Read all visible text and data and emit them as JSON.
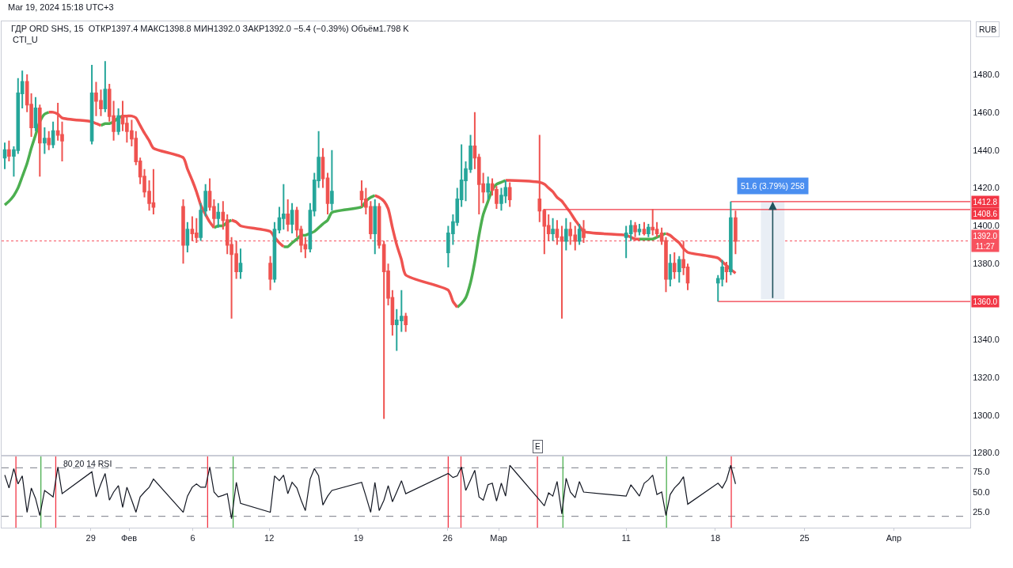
{
  "chart_data": [
    {
      "type": "candlestick",
      "title": "ГДР ORD SHS, 15  ОТКР1397.4 МАКС1398.8 МИН1392.0 ЗАКР1392.0 −5.4 (−0.39%) Объём1.798 K",
      "subtitle": "CTI_U",
      "ylabel": "RUB",
      "annotations": [
        "Mar 19, 2024 15:18 UTC+3"
      ],
      "x": [
        "2024-01-22T06:00",
        "2024-01-22T14:00",
        "2024-01-22T23:00",
        "2024-01-23T07:00",
        "2024-01-23T15:00",
        "2024-01-24T00:00",
        "2024-01-24T08:00",
        "2024-01-24T16:00",
        "2024-01-25T00:00",
        "2024-01-25T09:00",
        "2024-01-25T17:00",
        "2024-01-26T01:00",
        "2024-01-26T10:00",
        "2024-01-26T18:00",
        "2024-01-29T02:00",
        "2024-01-29T10:00",
        "2024-01-29T19:00",
        "2024-01-30T03:00",
        "2024-01-30T11:00",
        "2024-01-30T19:00",
        "2024-01-31T04:00",
        "2024-01-31T12:00",
        "2024-01-31T20:00",
        "2024-02-01T05:00",
        "2024-02-01T13:00",
        "2024-02-01T21:00",
        "2024-02-02T05:00",
        "2024-02-02T14:00",
        "2024-02-02T22:00",
        "2024-02-05T06:00",
        "2024-02-05T14:00",
        "2024-02-05T23:00",
        "2024-02-06T07:00",
        "2024-02-06T15:00",
        "2024-02-07T00:00",
        "2024-02-07T08:00",
        "2024-02-07T16:00",
        "2024-02-08T00:00",
        "2024-02-08T09:00",
        "2024-02-08T17:00",
        "2024-02-09T01:00",
        "2024-02-09T10:00",
        "2024-02-09T18:00",
        "2024-02-12T02:00",
        "2024-02-12T10:00",
        "2024-02-12T19:00",
        "2024-02-13T03:00",
        "2024-02-13T11:00",
        "2024-02-13T19:00",
        "2024-02-14T04:00",
        "2024-02-14T12:00",
        "2024-02-14T20:00",
        "2024-02-15T05:00",
        "2024-02-15T13:00",
        "2024-02-15T21:00",
        "2024-02-16T05:00",
        "2024-02-16T14:00",
        "2024-02-16T22:00",
        "2024-02-19T06:00",
        "2024-02-19T14:00",
        "2024-02-19T23:00",
        "2024-02-20T07:00",
        "2024-02-20T15:00",
        "2024-02-21T00:00",
        "2024-02-21T08:00",
        "2024-02-21T16:00",
        "2024-02-22T00:00",
        "2024-02-22T09:00",
        "2024-02-22T17:00",
        "2024-02-26T01:00",
        "2024-02-26T10:00",
        "2024-02-26T18:00",
        "2024-02-27T02:00",
        "2024-02-27T10:00",
        "2024-02-27T19:00",
        "2024-02-28T03:00",
        "2024-02-28T11:00",
        "2024-02-28T19:00",
        "2024-02-29T04:00",
        "2024-02-29T12:00",
        "2024-02-29T20:00",
        "2024-03-01T05:00",
        "2024-03-01T13:00",
        "2024-03-01T21:00",
        "2024-03-04T05:00",
        "2024-03-04T14:00",
        "2024-03-04T22:00",
        "2024-03-05T06:00",
        "2024-03-05T14:00",
        "2024-03-05T23:00",
        "2024-03-06T07:00",
        "2024-03-06T15:00",
        "2024-03-07T00:00",
        "2024-03-07T08:00",
        "2024-03-07T16:00",
        "2024-03-11T00:00",
        "2024-03-11T09:00",
        "2024-03-11T17:00",
        "2024-03-12T01:00",
        "2024-03-12T10:00",
        "2024-03-12T18:00",
        "2024-03-13T02:00",
        "2024-03-13T10:00",
        "2024-03-13T19:00",
        "2024-03-14T03:00",
        "2024-03-14T11:00",
        "2024-03-14T19:00",
        "2024-03-15T04:00",
        "2024-03-15T12:00",
        "2024-03-15T20:00",
        "2024-03-18T05:00",
        "2024-03-18T13:00",
        "2024-03-18T21:00",
        "2024-03-19T05:00",
        "2024-03-19T14:00"
      ],
      "ohlc": [
        [
          1436,
          1444,
          1430,
          1440
        ],
        [
          1440,
          1445,
          1434,
          1437
        ],
        [
          1437,
          1442,
          1426,
          1440
        ],
        [
          1440,
          1478,
          1438,
          1470
        ],
        [
          1470,
          1482,
          1462,
          1476
        ],
        [
          1476,
          1480,
          1460,
          1464
        ],
        [
          1464,
          1470,
          1447,
          1452
        ],
        [
          1452,
          1468,
          1450,
          1462
        ],
        [
          1462,
          1464,
          1426,
          1444
        ],
        [
          1444,
          1452,
          1438,
          1446
        ],
        [
          1446,
          1450,
          1440,
          1443
        ],
        [
          1443,
          1455,
          1441,
          1450
        ],
        [
          1450,
          1465,
          1445,
          1448
        ],
        [
          1448,
          1455,
          1434,
          1445
        ],
        [
          1445,
          1485,
          1443,
          1470
        ],
        [
          1470,
          1476,
          1458,
          1466
        ],
        [
          1466,
          1472,
          1458,
          1462
        ],
        [
          1462,
          1487,
          1460,
          1472
        ],
        [
          1472,
          1475,
          1455,
          1458
        ],
        [
          1458,
          1466,
          1445,
          1450
        ],
        [
          1450,
          1462,
          1448,
          1458
        ],
        [
          1458,
          1466,
          1450,
          1454
        ],
        [
          1454,
          1458,
          1444,
          1450
        ],
        [
          1450,
          1456,
          1442,
          1446
        ],
        [
          1446,
          1450,
          1432,
          1434
        ],
        [
          1434,
          1436,
          1422,
          1426
        ],
        [
          1426,
          1430,
          1415,
          1418
        ],
        [
          1418,
          1424,
          1408,
          1412
        ],
        [
          1412,
          1430,
          1406,
          1410
        ],
        [
          1410,
          1414,
          1380,
          1390
        ],
        [
          1390,
          1402,
          1386,
          1398
        ],
        [
          1398,
          1405,
          1392,
          1396
        ],
        [
          1396,
          1404,
          1391,
          1394
        ],
        [
          1394,
          1412,
          1392,
          1408
        ],
        [
          1408,
          1422,
          1405,
          1418
        ],
        [
          1418,
          1425,
          1408,
          1410
        ],
        [
          1410,
          1414,
          1400,
          1404
        ],
        [
          1404,
          1412,
          1399,
          1407
        ],
        [
          1407,
          1413,
          1398,
          1403
        ],
        [
          1403,
          1406,
          1385,
          1390
        ],
        [
          1390,
          1394,
          1351,
          1385
        ],
        [
          1385,
          1392,
          1372,
          1376
        ],
        [
          1376,
          1388,
          1372,
          1380
        ],
        [
          1380,
          1384,
          1366,
          1372
        ],
        [
          1372,
          1402,
          1370,
          1398
        ],
        [
          1398,
          1410,
          1396,
          1404
        ],
        [
          1404,
          1422,
          1398,
          1406
        ],
        [
          1406,
          1414,
          1397,
          1401
        ],
        [
          1401,
          1412,
          1396,
          1408
        ],
        [
          1408,
          1410,
          1394,
          1398
        ],
        [
          1398,
          1400,
          1386,
          1390
        ],
        [
          1390,
          1394,
          1383,
          1388
        ],
        [
          1388,
          1412,
          1386,
          1408
        ],
        [
          1408,
          1428,
          1405,
          1424
        ],
        [
          1424,
          1450,
          1420,
          1436
        ],
        [
          1436,
          1441,
          1420,
          1425
        ],
        [
          1425,
          1428,
          1406,
          1412
        ],
        [
          1412,
          1440,
          1408,
          1418
        ],
        [
          1418,
          1424,
          1410,
          1414
        ],
        [
          1414,
          1420,
          1406,
          1410
        ],
        [
          1410,
          1413,
          1393,
          1396
        ],
        [
          1396,
          1414,
          1385,
          1410
        ],
        [
          1410,
          1412,
          1388,
          1390
        ],
        [
          1390,
          1392,
          1298,
          1376
        ],
        [
          1376,
          1380,
          1358,
          1362
        ],
        [
          1362,
          1366,
          1342,
          1348
        ],
        [
          1348,
          1356,
          1334,
          1350
        ],
        [
          1350,
          1366,
          1344,
          1352
        ],
        [
          1352,
          1354,
          1344,
          1348
        ],
        [
          1386,
          1400,
          1378,
          1396
        ],
        [
          1396,
          1406,
          1390,
          1402
        ],
        [
          1402,
          1420,
          1400,
          1414
        ],
        [
          1414,
          1443,
          1410,
          1424
        ],
        [
          1424,
          1434,
          1413,
          1430
        ],
        [
          1430,
          1448,
          1428,
          1442
        ],
        [
          1442,
          1460,
          1430,
          1436
        ],
        [
          1436,
          1438,
          1406,
          1422
        ],
        [
          1422,
          1428,
          1412,
          1418
        ],
        [
          1418,
          1426,
          1414,
          1422
        ],
        [
          1422,
          1425,
          1416,
          1419
        ],
        [
          1419,
          1421,
          1409,
          1412
        ],
        [
          1412,
          1420,
          1408,
          1416
        ],
        [
          1416,
          1424,
          1412,
          1420
        ],
        [
          1420,
          1423,
          1410,
          1414
        ],
        [
          1414,
          1448,
          1402,
          1408
        ],
        [
          1408,
          1409,
          1385,
          1400
        ],
        [
          1400,
          1406,
          1392,
          1396
        ],
        [
          1396,
          1404,
          1392,
          1398
        ],
        [
          1398,
          1403,
          1390,
          1394
        ],
        [
          1394,
          1400,
          1351,
          1392
        ],
        [
          1392,
          1404,
          1387,
          1398
        ],
        [
          1398,
          1402,
          1390,
          1395
        ],
        [
          1395,
          1400,
          1387,
          1392
        ],
        [
          1392,
          1401,
          1390,
          1398
        ],
        [
          1398,
          1403,
          1391,
          1394
        ],
        [
          1394,
          1400,
          1383,
          1396
        ],
        [
          1396,
          1403,
          1392,
          1400
        ],
        [
          1400,
          1402,
          1394,
          1397
        ],
        [
          1397,
          1401,
          1395,
          1398
        ],
        [
          1398,
          1402,
          1395,
          1396
        ],
        [
          1396,
          1401,
          1394,
          1399
        ],
        [
          1399,
          1409,
          1395,
          1398
        ],
        [
          1398,
          1402,
          1394,
          1396
        ],
        [
          1396,
          1399,
          1390,
          1392
        ],
        [
          1392,
          1394,
          1365,
          1372
        ],
        [
          1372,
          1385,
          1368,
          1380
        ],
        [
          1380,
          1386,
          1372,
          1376
        ],
        [
          1376,
          1384,
          1370,
          1382
        ],
        [
          1382,
          1392,
          1374,
          1378
        ],
        [
          1378,
          1380,
          1366,
          1370
        ],
        [
          1370,
          1374,
          1360,
          1372
        ],
        [
          1372,
          1382,
          1368,
          1378
        ],
        [
          1378,
          1381,
          1370,
          1376
        ],
        [
          1376,
          1412.8,
          1374,
          1404
        ],
        [
          1404,
          1408,
          1385,
          1392
        ]
      ],
      "series": [
        {
          "type": "bar",
          "x": [
            "2024-03-22T12:00"
          ],
          "base": [
            1361.2
          ],
          "values": [
            51.6
          ],
          "color": "#e9eef5",
          "value_labels": [
            "51.6 (3.79%) 258"
          ]
        },
        {
          "type": "line",
          "color": "#4caf50",
          "values": [
            1411,
            1413,
            1416,
            1420,
            1426,
            1433,
            1441,
            1448,
            1455,
            1459,
            1460,
            null,
            null,
            null,
            null,
            null,
            1453,
            1454,
            1454,
            1455,
            1457,
            1458,
            null,
            null,
            null,
            null,
            null,
            null,
            null,
            null,
            null,
            null,
            null,
            null,
            null,
            null,
            1399,
            1400,
            1400,
            1402,
            1403,
            null,
            null,
            null,
            null,
            null,
            1389,
            1389,
            1391,
            1393,
            1395,
            1395,
            1396,
            1397,
            1399,
            1401,
            1403,
            1407,
            1410,
            1413,
            1415,
            1416,
            null,
            null,
            null,
            null,
            null,
            null,
            null,
            null,
            null,
            1357,
            1359,
            1362,
            1370,
            1381,
            1395,
            1406,
            1413,
            1419,
            1422,
            1423,
            1424,
            null,
            null,
            null,
            null,
            null,
            null,
            null,
            null,
            null,
            null,
            null,
            null,
            null,
            null,
            null,
            1393,
            1393,
            1393,
            1393,
            1394,
            1395,
            1396,
            null,
            null,
            null,
            null,
            null,
            null,
            null,
            null,
            null,
            null
          ]
        },
        {
          "type": "line",
          "color": "#ef5350",
          "values": [
            null,
            null,
            null,
            null,
            null,
            null,
            null,
            null,
            null,
            null,
            1460,
            1460,
            1459,
            1457,
            1455,
            1454,
            1453,
            null,
            null,
            null,
            null,
            1458,
            1458,
            1458,
            1457,
            1453,
            1449,
            1445,
            1441,
            1436,
            1430,
            1424,
            1418,
            1411,
            1406,
            1402,
            1399,
            null,
            null,
            null,
            1403,
            1402,
            1400,
            1397,
            1394,
            1391,
            1389,
            null,
            null,
            null,
            null,
            null,
            null,
            null,
            null,
            null,
            null,
            null,
            null,
            null,
            null,
            1416,
            1415,
            1413,
            1409,
            1399,
            1390,
            1382,
            1374,
            1366,
            1360,
            1357,
            null,
            null,
            null,
            null,
            null,
            null,
            null,
            null,
            null,
            null,
            1424,
            1424,
            1423,
            1422,
            1420,
            1418,
            1415,
            1413,
            1410,
            1407,
            1403,
            1400,
            1397,
            1395,
            1394,
            1393,
            1393,
            null,
            null,
            null,
            null,
            null,
            1396,
            1395,
            1393,
            1391,
            1388,
            1386,
            1383,
            1381,
            1379,
            1377,
            1375
          ]
        },
        {
          "type": "line",
          "color": "#f23645",
          "x": [
            "2024-03-04T12:00",
            "2024-04-07T00:00"
          ],
          "values": [
            1408.6,
            1408.6
          ],
          "value_labels": [
            null,
            "1408.6"
          ]
        },
        {
          "type": "line",
          "color": "#f23645",
          "x": [
            "2024-03-19T05:00",
            "2024-04-07T00:00"
          ],
          "values": [
            1412.8,
            1412.8
          ],
          "value_labels": [
            null,
            "1412.8"
          ]
        },
        {
          "type": "line",
          "color": "#f23645",
          "x": [
            "2024-03-18T05:00",
            "2024-04-07T00:00"
          ],
          "values": [
            1360.0,
            1360.0
          ],
          "value_labels": [
            null,
            "1360.0"
          ]
        }
      ],
      "ref_lines": [
        {
          "axis": "y",
          "value": 1392.0,
          "label": "1392.0\n11:27",
          "color": "#f7525f",
          "line_style": "dotted"
        }
      ],
      "xlim": [
        "2024-01-22T00:00",
        "2024-04-07T00:00"
      ],
      "ylim": [
        1279,
        1508
      ],
      "yticks": [
        {
          "value": 1280,
          "label": "1280.0"
        },
        {
          "value": 1300,
          "label": "1300.0"
        },
        {
          "value": 1320,
          "label": "1320.0"
        },
        {
          "value": 1340,
          "label": "1340.0"
        },
        {
          "value": 1380,
          "label": "1380.0"
        },
        {
          "value": 1400,
          "label": "1400.0"
        },
        {
          "value": 1420,
          "label": "1420.0"
        },
        {
          "value": 1440,
          "label": "1440.0"
        },
        {
          "value": 1460,
          "label": "1460.0"
        },
        {
          "value": 1480,
          "label": "1480.0"
        }
      ],
      "tick_labels": "y"
    },
    {
      "type": "line",
      "title": "80 20 14 RSI",
      "annotations": [
        {
          "text": "E",
          "x": "2024-03-04T01:00",
          "y": 94
        }
      ],
      "x": [
        "2024-01-22T06:00",
        "2024-01-22T14:00",
        "2024-01-22T23:00",
        "2024-01-23T07:00",
        "2024-01-23T15:00",
        "2024-01-24T00:00",
        "2024-01-24T08:00",
        "2024-01-24T16:00",
        "2024-01-25T00:00",
        "2024-01-25T09:00",
        "2024-01-25T17:00",
        "2024-01-26T01:00",
        "2024-01-26T10:00",
        "2024-01-26T18:00",
        "2024-01-29T02:00",
        "2024-01-29T10:00",
        "2024-01-29T19:00",
        "2024-01-30T03:00",
        "2024-01-30T11:00",
        "2024-01-30T19:00",
        "2024-01-31T04:00",
        "2024-01-31T12:00",
        "2024-01-31T20:00",
        "2024-02-01T05:00",
        "2024-02-01T13:00",
        "2024-02-01T21:00",
        "2024-02-02T05:00",
        "2024-02-02T14:00",
        "2024-02-02T22:00",
        "2024-02-05T06:00",
        "2024-02-05T14:00",
        "2024-02-05T23:00",
        "2024-02-06T07:00",
        "2024-02-06T15:00",
        "2024-02-07T00:00",
        "2024-02-07T08:00",
        "2024-02-07T16:00",
        "2024-02-08T00:00",
        "2024-02-08T09:00",
        "2024-02-08T17:00",
        "2024-02-09T01:00",
        "2024-02-09T10:00",
        "2024-02-09T18:00",
        "2024-02-12T02:00",
        "2024-02-12T10:00",
        "2024-02-12T19:00",
        "2024-02-13T03:00",
        "2024-02-13T11:00",
        "2024-02-13T19:00",
        "2024-02-14T04:00",
        "2024-02-14T12:00",
        "2024-02-14T20:00",
        "2024-02-15T05:00",
        "2024-02-15T13:00",
        "2024-02-15T21:00",
        "2024-02-16T05:00",
        "2024-02-16T14:00",
        "2024-02-16T22:00",
        "2024-02-19T06:00",
        "2024-02-19T14:00",
        "2024-02-19T23:00",
        "2024-02-20T07:00",
        "2024-02-20T15:00",
        "2024-02-21T00:00",
        "2024-02-21T08:00",
        "2024-02-21T16:00",
        "2024-02-22T00:00",
        "2024-02-22T09:00",
        "2024-02-22T17:00",
        "2024-02-26T01:00",
        "2024-02-26T10:00",
        "2024-02-26T18:00",
        "2024-02-27T02:00",
        "2024-02-27T10:00",
        "2024-02-27T19:00",
        "2024-02-28T03:00",
        "2024-02-28T11:00",
        "2024-02-28T19:00",
        "2024-02-29T04:00",
        "2024-02-29T12:00",
        "2024-02-29T20:00",
        "2024-03-01T05:00",
        "2024-03-01T13:00",
        "2024-03-01T21:00",
        "2024-03-04T05:00",
        "2024-03-04T14:00",
        "2024-03-04T22:00",
        "2024-03-05T06:00",
        "2024-03-05T14:00",
        "2024-03-05T23:00",
        "2024-03-06T07:00",
        "2024-03-06T15:00",
        "2024-03-07T00:00",
        "2024-03-07T08:00",
        "2024-03-07T16:00",
        "2024-03-11T00:00",
        "2024-03-11T09:00",
        "2024-03-11T17:00",
        "2024-03-12T01:00",
        "2024-03-12T10:00",
        "2024-03-12T18:00",
        "2024-03-13T02:00",
        "2024-03-13T10:00",
        "2024-03-13T19:00",
        "2024-03-14T03:00",
        "2024-03-14T11:00",
        "2024-03-14T19:00",
        "2024-03-15T04:00",
        "2024-03-15T12:00",
        "2024-03-15T20:00",
        "2024-03-18T05:00",
        "2024-03-18T13:00",
        "2024-03-18T21:00",
        "2024-03-19T05:00",
        "2024-03-19T14:00"
      ],
      "series": [
        {
          "color": "#131722",
          "values": [
            71,
            55,
            79,
            60,
            70,
            25,
            55,
            42,
            21,
            52,
            48,
            44,
            81,
            48,
            75,
            44,
            60,
            73,
            40,
            50,
            58,
            31,
            56,
            40,
            25,
            44,
            50,
            56,
            66,
            25,
            45,
            56,
            60,
            56,
            56,
            81,
            50,
            44,
            46,
            48,
            17,
            62,
            36,
            25,
            70,
            64,
            71,
            48,
            62,
            55,
            40,
            27,
            66,
            79,
            70,
            34,
            45,
            52,
            62,
            45,
            25,
            62,
            27,
            40,
            58,
            38,
            50,
            64,
            48,
            73,
            68,
            70,
            81,
            52,
            65,
            77,
            44,
            40,
            59,
            61,
            39,
            61,
            45,
            83,
            40,
            33,
            49,
            45,
            63,
            23,
            67,
            50,
            43,
            63,
            50,
            45,
            59,
            52,
            45,
            61,
            65,
            71,
            47,
            50,
            21,
            47,
            55,
            61,
            69,
            35,
            61,
            55,
            65,
            83,
            60
          ]
        }
      ],
      "ref_lines": [
        {
          "axis": "y",
          "value": 80,
          "color": "#787b86",
          "line_style": "dashed"
        },
        {
          "axis": "y",
          "value": 20,
          "color": "#787b86",
          "line_style": "dashed"
        },
        {
          "axis": "x",
          "value": "2024-01-23T03:00",
          "color": "#f23645"
        },
        {
          "axis": "x",
          "value": "2024-01-25T02:00",
          "color": "#4caf50"
        },
        {
          "axis": "x",
          "value": "2024-01-26T06:00",
          "color": "#f23645"
        },
        {
          "axis": "x",
          "value": "2024-02-07T04:00",
          "color": "#f23645"
        },
        {
          "axis": "x",
          "value": "2024-02-09T04:00",
          "color": "#4caf50"
        },
        {
          "axis": "x",
          "value": "2024-02-26T01:00",
          "color": "#f23645"
        },
        {
          "axis": "x",
          "value": "2024-02-27T01:00",
          "color": "#f23645"
        },
        {
          "axis": "x",
          "value": "2024-03-04T01:00",
          "color": "#f23645"
        },
        {
          "axis": "x",
          "value": "2024-03-06T01:00",
          "color": "#4caf50"
        },
        {
          "axis": "x",
          "value": "2024-03-14T04:00",
          "color": "#4caf50"
        },
        {
          "axis": "x",
          "value": "2024-03-19T06:00",
          "color": "#f23645"
        }
      ],
      "xlim": [
        "2024-01-22T00:00",
        "2024-04-07T00:00"
      ],
      "xticks": [
        {
          "value": "2024-01-29",
          "label": "29"
        },
        {
          "value": "2024-02-01",
          "label": "Фев"
        },
        {
          "value": "2024-02-06",
          "label": "6"
        },
        {
          "value": "2024-02-12",
          "label": "12"
        },
        {
          "value": "2024-02-19",
          "label": "19"
        },
        {
          "value": "2024-02-26",
          "label": "26"
        },
        {
          "value": "2024-03-01",
          "label": "Мар"
        },
        {
          "value": "2024-03-11",
          "label": "11"
        },
        {
          "value": "2024-03-18",
          "label": "18"
        },
        {
          "value": "2024-03-25",
          "label": "25"
        },
        {
          "value": "2024-04-01",
          "label": "Апр"
        }
      ],
      "ylim": [
        6,
        94
      ],
      "yticks": [
        {
          "value": 25,
          "label": "25.0"
        },
        {
          "value": 50,
          "label": "50.0"
        },
        {
          "value": 75,
          "label": "75.0"
        }
      ]
    }
  ]
}
